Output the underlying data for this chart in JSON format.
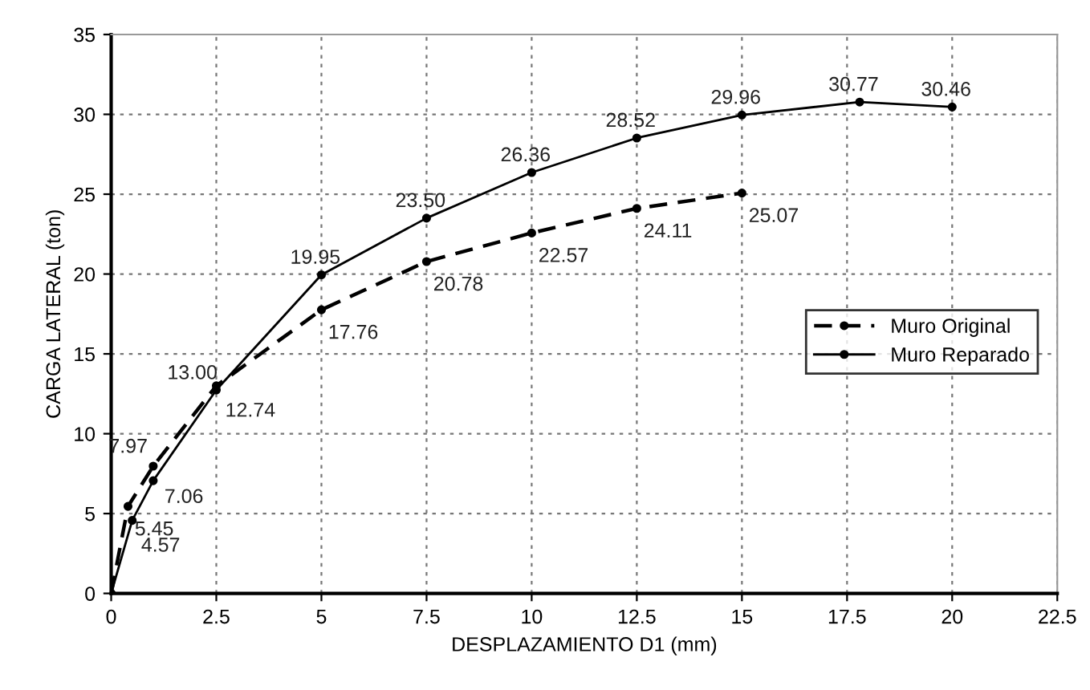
{
  "chart_data": {
    "type": "line",
    "xlabel": "DESPLAZAMIENTO D1 (mm)",
    "ylabel": "CARGA LATERAL (ton)",
    "xlim": [
      0,
      22.5
    ],
    "xticks": [
      0,
      2.5,
      5,
      7.5,
      10,
      12.5,
      15,
      17.5,
      20,
      22.5
    ],
    "ylim": [
      0,
      35
    ],
    "yticks": [
      0,
      5,
      10,
      15,
      20,
      25,
      30,
      35
    ],
    "grid": true,
    "legend": "right",
    "marker": "circle",
    "series": [
      {
        "name": "Muro Original",
        "color": "#000000",
        "line_style": "dashed",
        "x": [
          0,
          0.4,
          1,
          2.5,
          5,
          7.5,
          10,
          12.5,
          15
        ],
        "values": [
          0,
          5.45,
          7.97,
          13.0,
          17.76,
          20.78,
          22.57,
          24.11,
          25.07
        ],
        "value_labels": [
          null,
          "5.45",
          "7.97",
          "13.00",
          "17.76",
          "20.78",
          "22.57",
          "24.11",
          "25.07"
        ]
      },
      {
        "name": "Muro Reparado",
        "color": "#000000",
        "line_style": "solid",
        "x": [
          0,
          0.5,
          1,
          2.5,
          5,
          7.5,
          10,
          12.5,
          15,
          17.8,
          20
        ],
        "values": [
          0,
          4.57,
          7.06,
          12.74,
          19.95,
          23.5,
          26.36,
          28.52,
          29.96,
          30.77,
          30.46
        ],
        "value_labels": [
          null,
          "4.57",
          "7.06",
          "12.74",
          "19.95",
          "23.50",
          "26.36",
          "28.52",
          "29.96",
          "30.77",
          "30.46"
        ]
      }
    ]
  }
}
